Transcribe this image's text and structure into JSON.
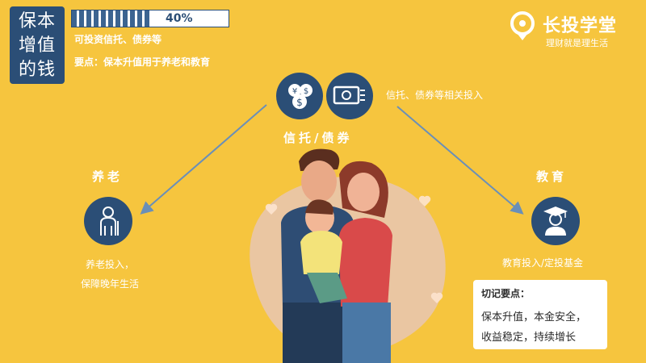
{
  "title_box": {
    "line1": "保本",
    "line2": "增值",
    "line3": "的钱"
  },
  "progress": {
    "value_text": "40%",
    "value": 0.4
  },
  "subtitle": {
    "line1": "可投资信托、债券等",
    "line2": "要点：保本升值用于养老和教育"
  },
  "logo": {
    "name": "长投学堂",
    "slogan": "理财就是理生活"
  },
  "top_node": {
    "label": "信托/债券",
    "desc": "信托、债券等相关投入"
  },
  "left_node": {
    "label": "养老",
    "desc_line1": "养老投入，",
    "desc_line2": "保障晚年生活"
  },
  "right_node": {
    "label": "教育",
    "desc": "教育投入/定投基金"
  },
  "note": {
    "title": "切记要点：",
    "line1": "保本升值，本金安全，",
    "line2": "收益稳定，持续增长"
  },
  "colors": {
    "background": "#F6C53E",
    "navy": "#2B4E76",
    "arrow": "#6A8FB8"
  }
}
